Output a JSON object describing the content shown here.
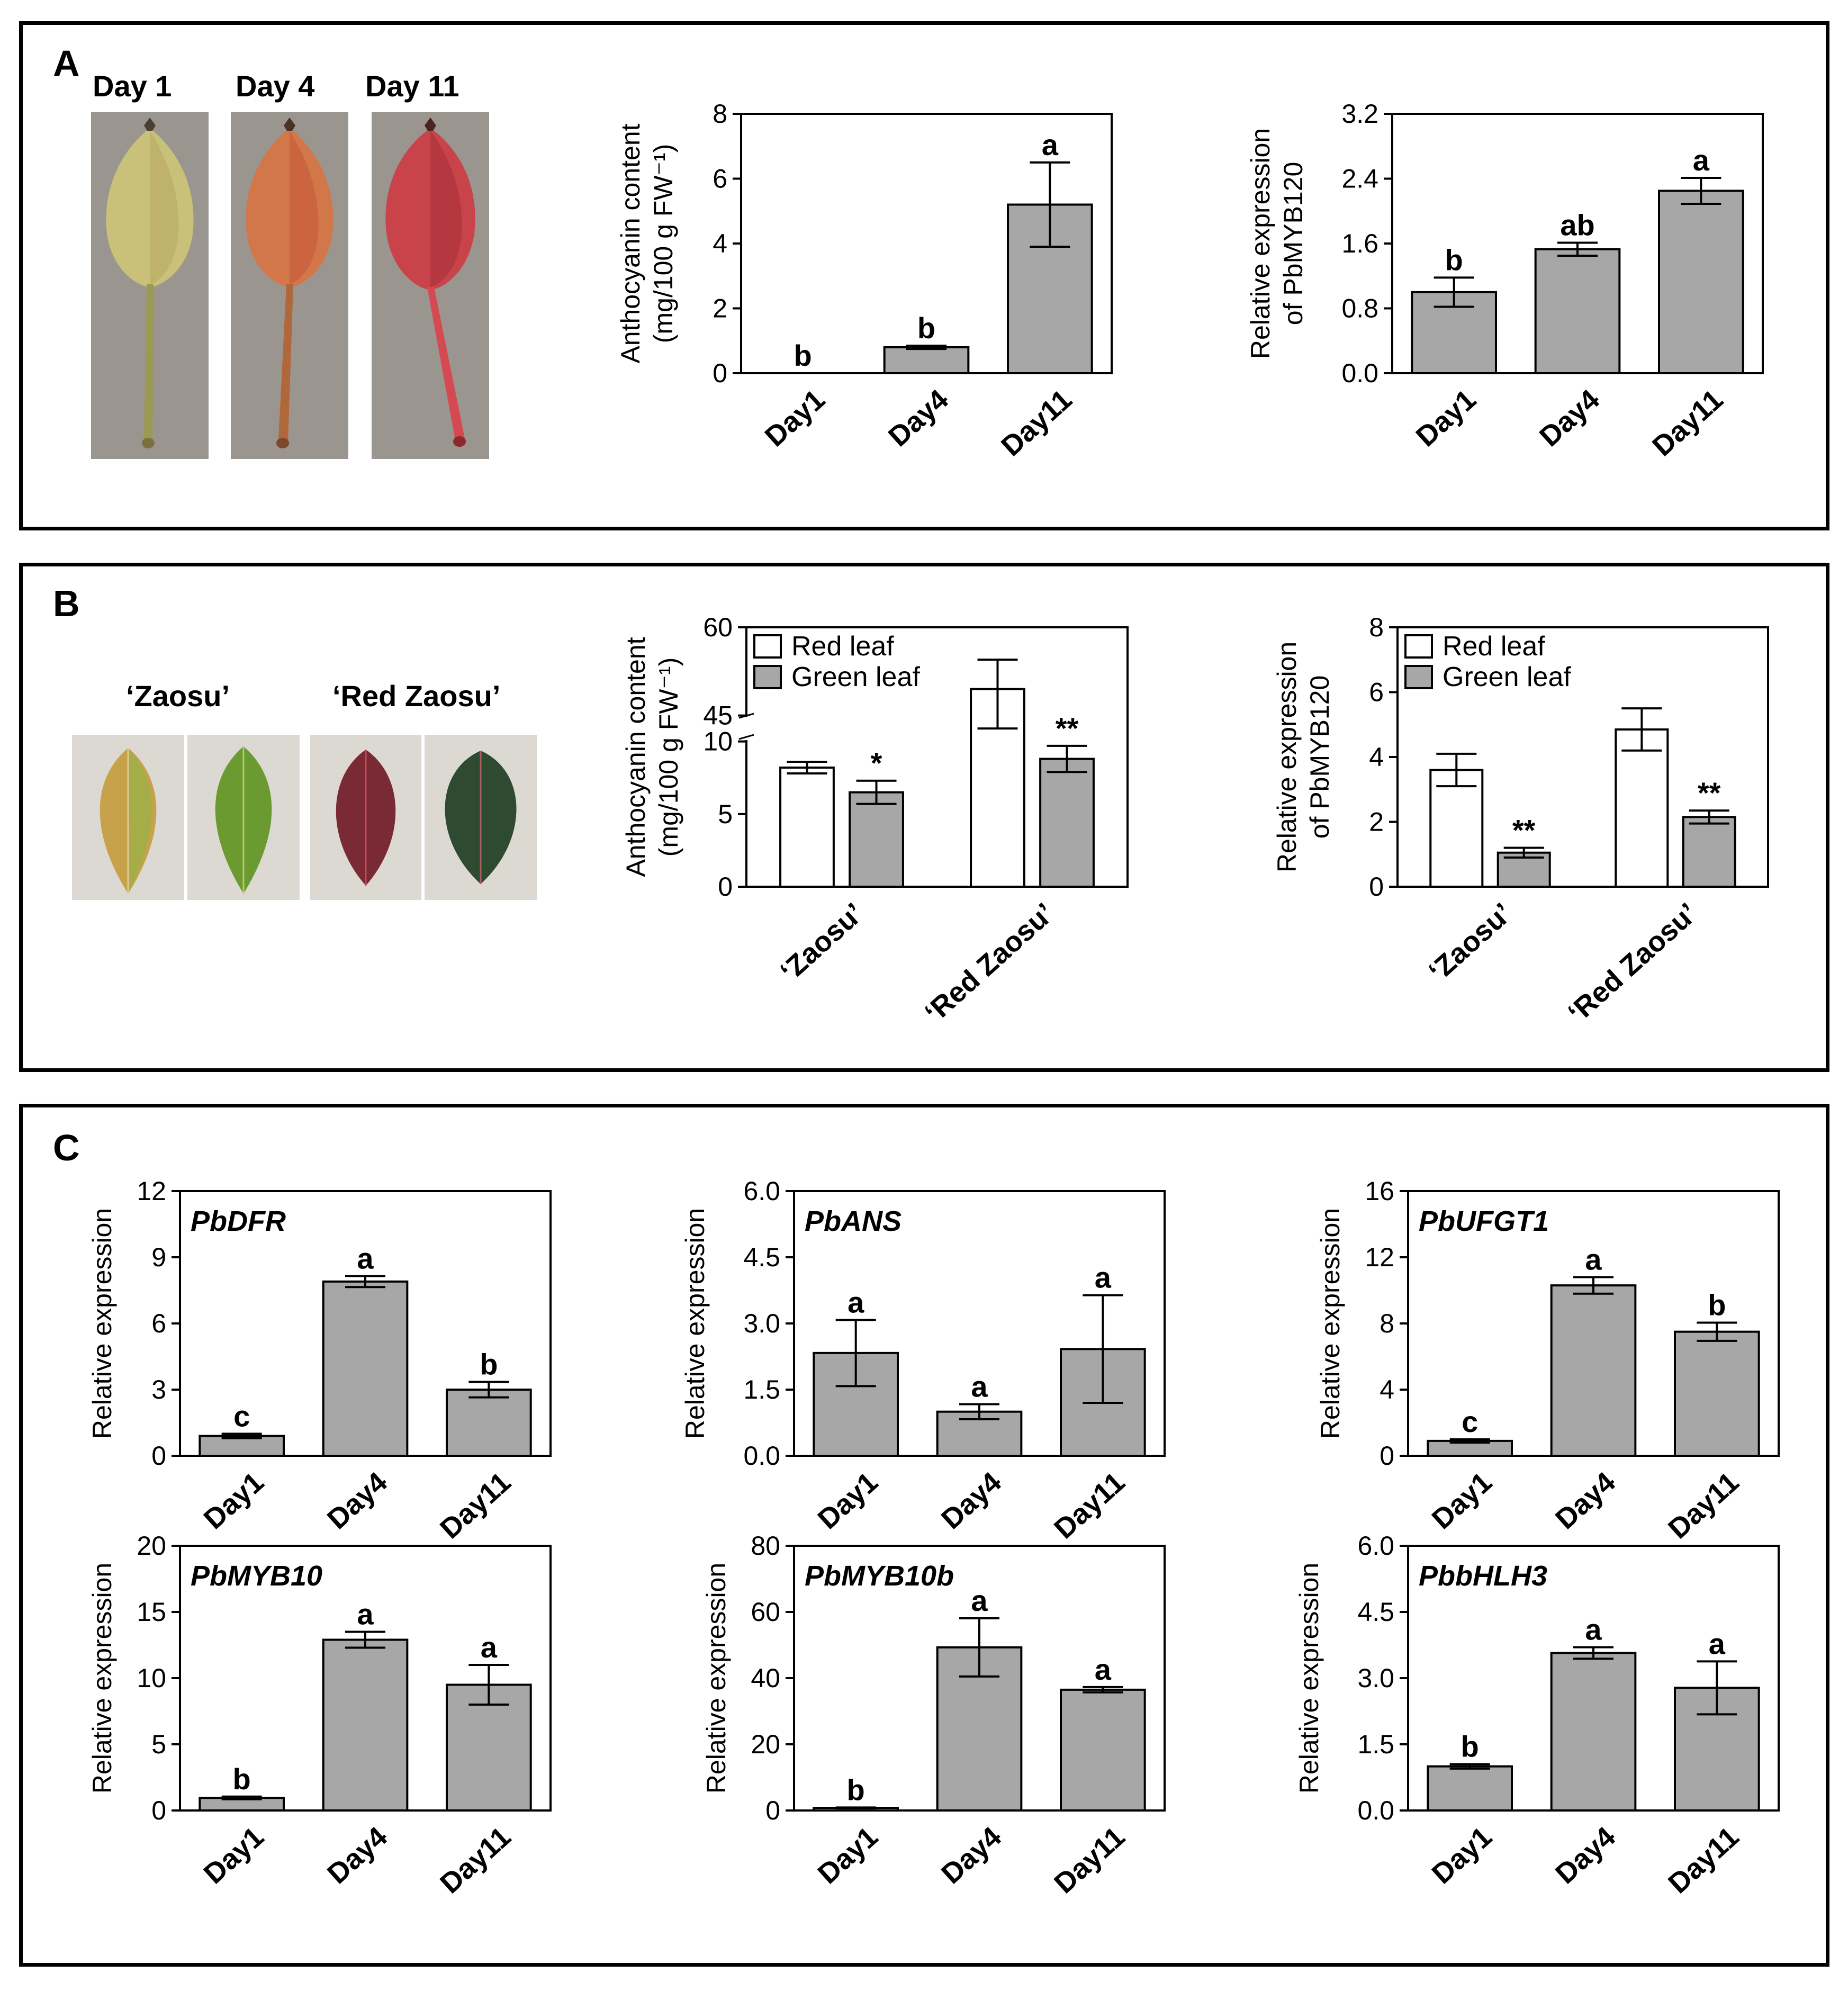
{
  "panels": [
    {
      "letter": "A",
      "labels": [
        "Day 1",
        "Day 4",
        "Day 11"
      ]
    },
    {
      "letter": "B",
      "labels": [
        "‘Zaosu’",
        "‘Red Zaosu’"
      ]
    },
    {
      "letter": "C",
      "labels": []
    }
  ],
  "colors": {
    "bar_gray": "#a7a7a7",
    "bar_white": "#ffffff",
    "axis": "#000000"
  },
  "chart_data": [
    {
      "id": "A-anthocyanin",
      "type": "bar",
      "ylabel_lines": [
        "Anthocyanin content",
        "(mg/100 g FW⁻¹)"
      ],
      "categories": [
        "Day1",
        "Day4",
        "Day11"
      ],
      "values": [
        0,
        0.8,
        5.2
      ],
      "errors": [
        0,
        0.05,
        1.3
      ],
      "letters": [
        "b",
        "b",
        "a"
      ],
      "ylim": [
        0,
        8
      ],
      "yticks": [
        "0",
        "2",
        "4",
        "6",
        "8"
      ]
    },
    {
      "id": "A-PbMYB120",
      "type": "bar",
      "ylabel_lines": [
        "Relative expression",
        "of PbMYB120"
      ],
      "categories": [
        "Day1",
        "Day4",
        "Day11"
      ],
      "values": [
        1.0,
        1.53,
        2.25
      ],
      "errors": [
        0.18,
        0.08,
        0.16
      ],
      "letters": [
        "b",
        "ab",
        "a"
      ],
      "ylim": [
        0,
        3.2
      ],
      "yticks": [
        "0.0",
        "0.8",
        "1.6",
        "2.4",
        "3.2"
      ]
    },
    {
      "id": "B-anthocyanin",
      "type": "bar",
      "ylabel_lines": [
        "Anthocyanin content",
        "(mg/100 g FW⁻¹)"
      ],
      "categories": [
        "‘Zaosu’",
        "‘Red Zaosu’"
      ],
      "series": [
        {
          "name": "Red leaf",
          "values": [
            8.2,
            49.5
          ],
          "errors": [
            0.4,
            5.0
          ],
          "marks": [
            "",
            ""
          ]
        },
        {
          "name": "Green leaf",
          "values": [
            6.5,
            8.8
          ],
          "errors": [
            0.8,
            0.9
          ],
          "marks": [
            "*",
            "**"
          ]
        }
      ],
      "ylim": [
        0,
        60
      ],
      "yticks": [
        "0",
        "5",
        "10",
        "45",
        "60"
      ],
      "y_break": [
        10,
        45
      ],
      "legend": "top-left"
    },
    {
      "id": "B-PbMYB120",
      "type": "bar",
      "ylabel_lines": [
        "Relative expression",
        "of PbMYB120"
      ],
      "categories": [
        "‘Zaosu’",
        "‘Red Zaosu’"
      ],
      "series": [
        {
          "name": "Red leaf",
          "values": [
            3.6,
            4.85
          ],
          "errors": [
            0.5,
            0.65
          ],
          "marks": [
            "",
            ""
          ]
        },
        {
          "name": "Green leaf",
          "values": [
            1.05,
            2.15
          ],
          "errors": [
            0.15,
            0.2
          ],
          "marks": [
            "**",
            "**"
          ]
        }
      ],
      "ylim": [
        0,
        8
      ],
      "yticks": [
        "0",
        "2",
        "4",
        "6",
        "8"
      ],
      "legend": "top-left"
    },
    {
      "id": "C-PbDFR",
      "type": "bar",
      "gene": "PbDFR",
      "ylabel_lines": [
        "Relative expression"
      ],
      "categories": [
        "Day1",
        "Day4",
        "Day11"
      ],
      "values": [
        0.9,
        7.9,
        3.0
      ],
      "errors": [
        0.1,
        0.25,
        0.35
      ],
      "letters": [
        "c",
        "a",
        "b"
      ],
      "ylim": [
        0,
        12
      ],
      "yticks": [
        "0",
        "3",
        "6",
        "9",
        "12"
      ]
    },
    {
      "id": "C-PbANS",
      "type": "bar",
      "gene": "PbANS",
      "ylabel_lines": [
        "Relative expression"
      ],
      "categories": [
        "Day1",
        "Day4",
        "Day11"
      ],
      "values": [
        2.33,
        1.0,
        2.42
      ],
      "errors": [
        0.75,
        0.17,
        1.22
      ],
      "letters": [
        "a",
        "a",
        "a"
      ],
      "ylim": [
        0,
        6.0
      ],
      "yticks": [
        "0.0",
        "1.5",
        "3.0",
        "4.5",
        "6.0"
      ]
    },
    {
      "id": "C-PbUFGT1",
      "type": "bar",
      "gene": "PbUFGT1",
      "ylabel_lines": [
        "Relative expression"
      ],
      "categories": [
        "Day1",
        "Day4",
        "Day11"
      ],
      "values": [
        0.9,
        10.3,
        7.5
      ],
      "errors": [
        0.1,
        0.5,
        0.55
      ],
      "letters": [
        "c",
        "a",
        "b"
      ],
      "ylim": [
        0,
        16
      ],
      "yticks": [
        "0",
        "4",
        "8",
        "12",
        "16"
      ]
    },
    {
      "id": "C-PbMYB10",
      "type": "bar",
      "gene": "PbMYB10",
      "ylabel_lines": [
        "Relative expression"
      ],
      "categories": [
        "Day1",
        "Day4",
        "Day11"
      ],
      "values": [
        0.95,
        12.9,
        9.5
      ],
      "errors": [
        0.1,
        0.6,
        1.5
      ],
      "letters": [
        "b",
        "a",
        "a"
      ],
      "ylim": [
        0,
        20
      ],
      "yticks": [
        "0",
        "5",
        "10",
        "15",
        "20"
      ]
    },
    {
      "id": "C-PbMYB10b",
      "type": "bar",
      "gene": "PbMYB10b",
      "ylabel_lines": [
        "Relative expression"
      ],
      "categories": [
        "Day1",
        "Day4",
        "Day11"
      ],
      "values": [
        0.8,
        49.3,
        36.5
      ],
      "errors": [
        0.1,
        8.8,
        0.8
      ],
      "letters": [
        "b",
        "a",
        "a"
      ],
      "ylim": [
        0,
        80
      ],
      "yticks": [
        "0",
        "20",
        "40",
        "60",
        "80"
      ]
    },
    {
      "id": "C-PbbHLH3",
      "type": "bar",
      "gene": "PbbHLH3",
      "ylabel_lines": [
        "Relative expression"
      ],
      "categories": [
        "Day1",
        "Day4",
        "Day11"
      ],
      "values": [
        1.0,
        3.57,
        2.78
      ],
      "errors": [
        0.05,
        0.13,
        0.6
      ],
      "letters": [
        "b",
        "a",
        "a"
      ],
      "ylim": [
        0,
        6.0
      ],
      "yticks": [
        "0.0",
        "1.5",
        "3.0",
        "4.5",
        "6.0"
      ]
    }
  ]
}
